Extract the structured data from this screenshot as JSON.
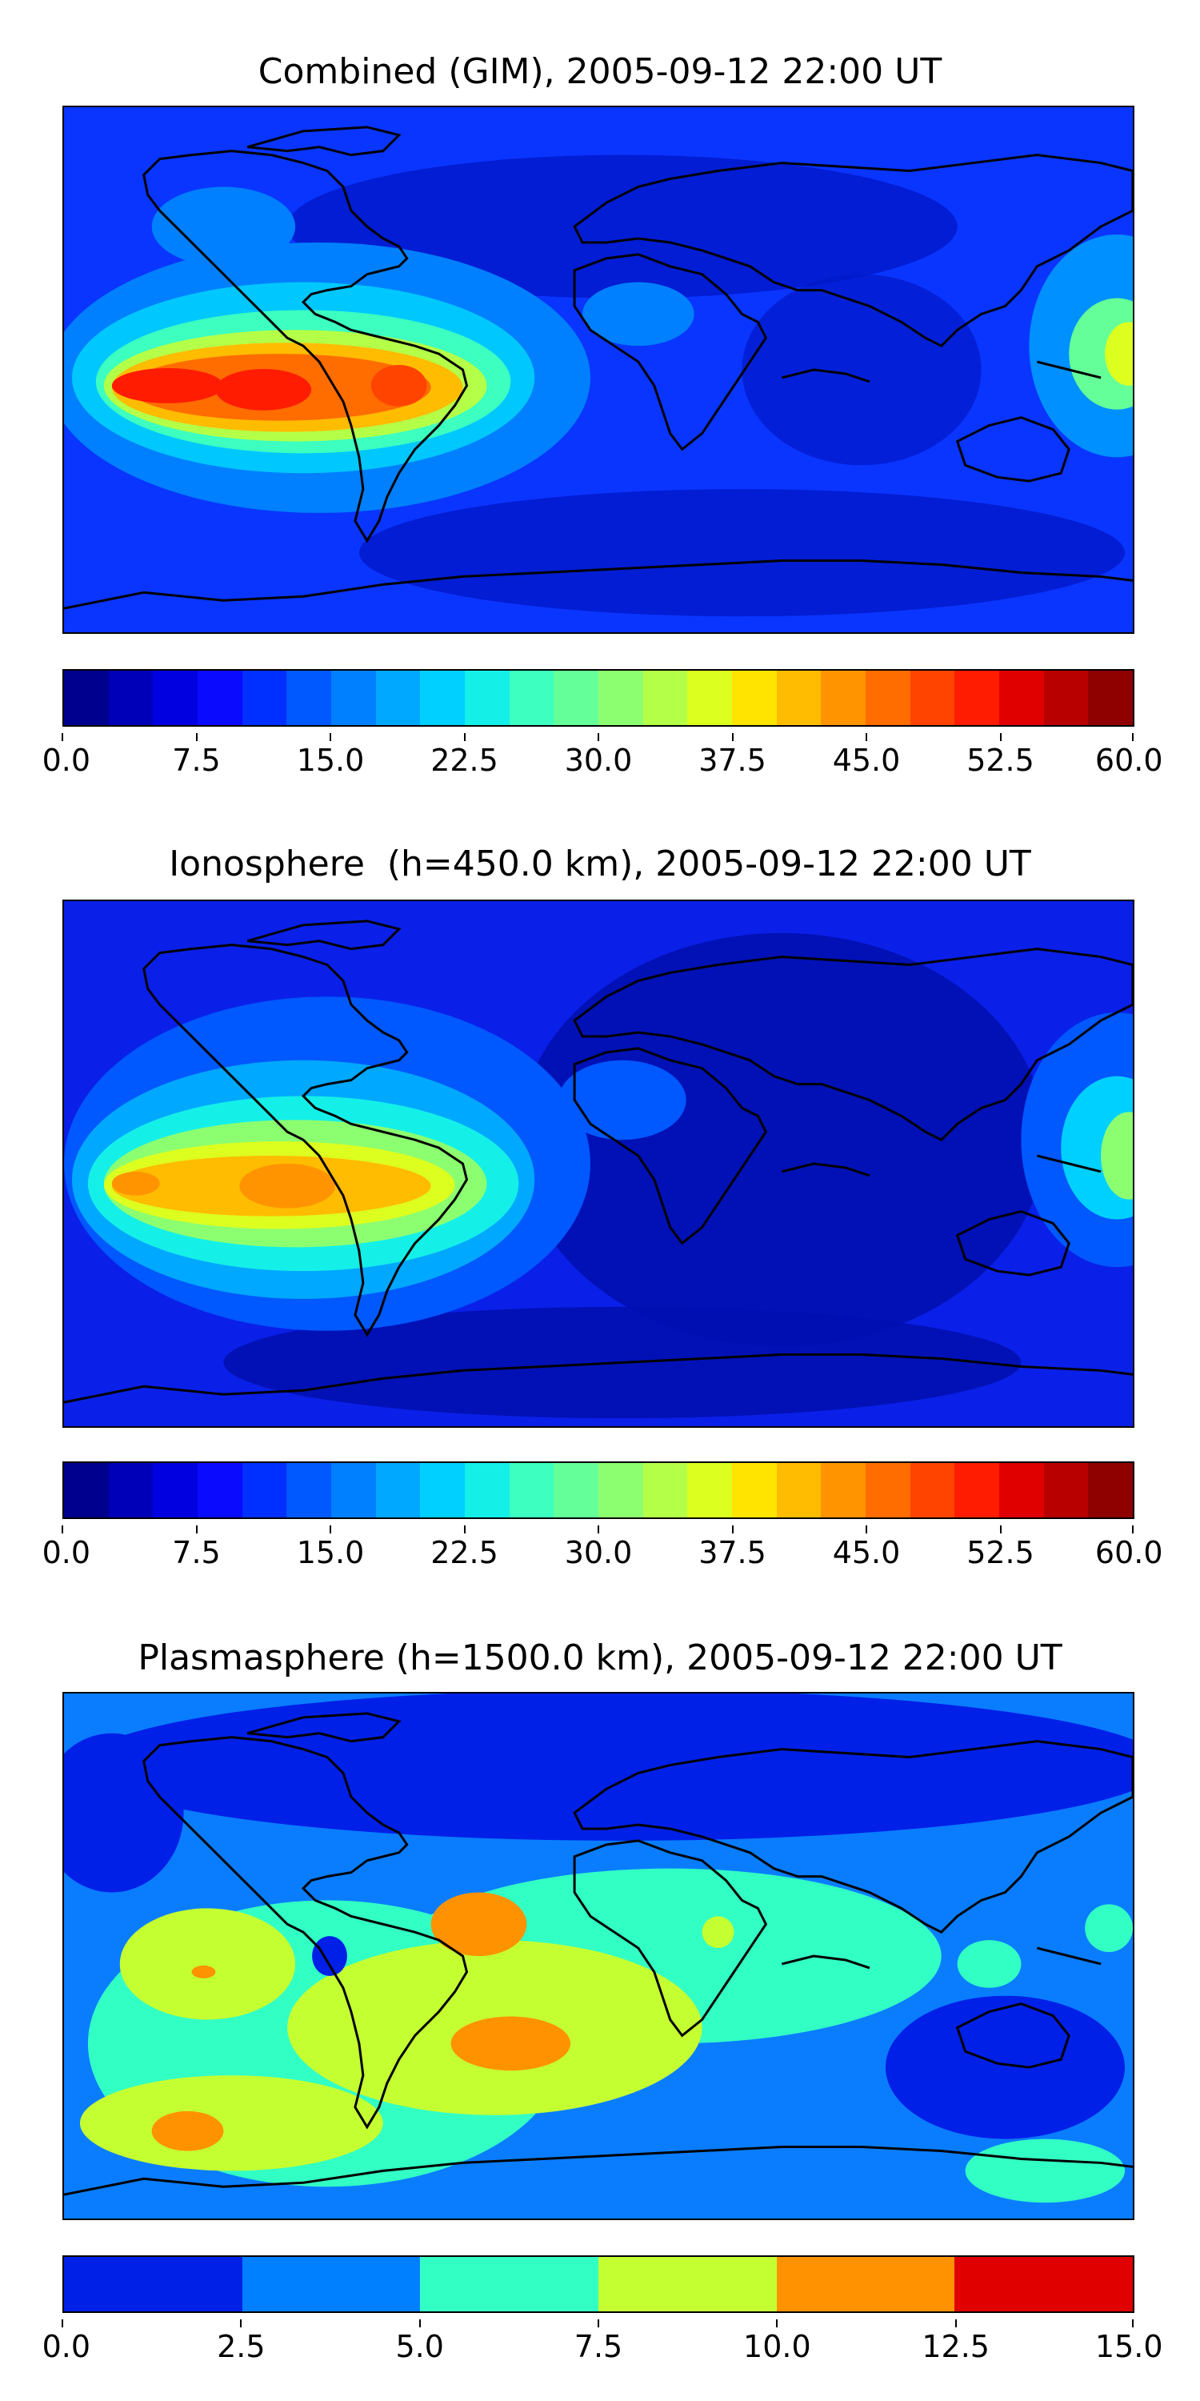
{
  "panels": [
    {
      "title": "Combined (GIM), 2005-09-12 22:00 UT",
      "background": "#0a35ff",
      "colorbar": {
        "colors": [
          "#00008f",
          "#0000b8",
          "#0000e0",
          "#0a0aff",
          "#0030ff",
          "#0058ff",
          "#0080ff",
          "#00a8ff",
          "#00d0ff",
          "#14f0e8",
          "#3cffc0",
          "#64ff98",
          "#8cff70",
          "#b4ff48",
          "#dcff20",
          "#ffe400",
          "#ffbc00",
          "#ff9400",
          "#ff6c00",
          "#ff4400",
          "#ff1c00",
          "#e00000",
          "#b80000",
          "#8f0000"
        ],
        "ticks": [
          "0.0",
          "7.5",
          "15.0",
          "22.5",
          "30.0",
          "37.5",
          "45.0",
          "52.5",
          "60.0"
        ]
      }
    },
    {
      "title": "Ionosphere  (h=450.0 km), 2005-09-12 22:00 UT",
      "background": "#0a20e8",
      "colorbar": {
        "colors": [
          "#00008f",
          "#0000b8",
          "#0000e0",
          "#0a0aff",
          "#0030ff",
          "#0058ff",
          "#0080ff",
          "#00a8ff",
          "#00d0ff",
          "#14f0e8",
          "#3cffc0",
          "#64ff98",
          "#8cff70",
          "#b4ff48",
          "#dcff20",
          "#ffe400",
          "#ffbc00",
          "#ff9400",
          "#ff6c00",
          "#ff4400",
          "#ff1c00",
          "#e00000",
          "#b80000",
          "#8f0000"
        ],
        "ticks": [
          "0.0",
          "7.5",
          "15.0",
          "22.5",
          "30.0",
          "37.5",
          "45.0",
          "52.5",
          "60.0"
        ]
      }
    },
    {
      "title": "Plasmasphere (h=1500.0 km), 2005-09-12 22:00 UT",
      "background": "#0a7dff",
      "colorbar": {
        "colors": [
          "#0020e8",
          "#0080ff",
          "#32ffc4",
          "#c4ff32",
          "#ff9200",
          "#e00000"
        ],
        "ticks": [
          "0.0",
          "2.5",
          "5.0",
          "7.5",
          "10.0",
          "12.5",
          "15.0"
        ]
      }
    }
  ],
  "coastline_color": "#000000"
}
